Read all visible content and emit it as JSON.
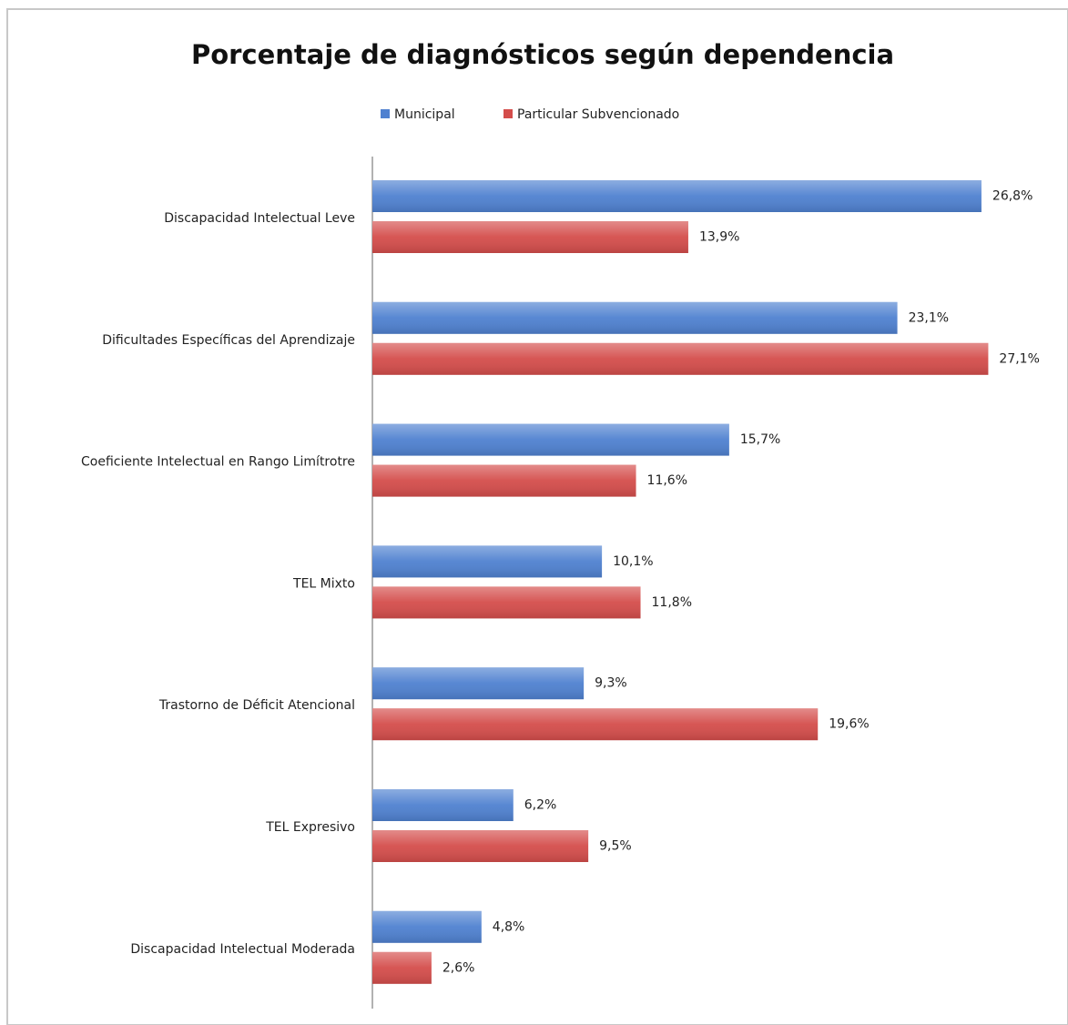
{
  "chart_data": {
    "type": "barh",
    "title": "Porcentaje de diagnósticos según dependencia",
    "categories": [
      "Discapacidad Intelectual Leve",
      "Dificultades Específicas del Aprendizaje",
      "Coeficiente Intelectual en Rango Limítrotre",
      "TEL Mixto",
      "Trastorno de Déficit Atencional",
      "TEL Expresivo",
      "Discapacidad Intelectual Moderada"
    ],
    "series": [
      {
        "name": "Municipal",
        "color": "#4f81d0",
        "values": [
          26.8,
          23.1,
          15.7,
          10.1,
          9.3,
          6.2,
          4.8
        ],
        "value_labels": [
          "26,8%",
          "23,1%",
          "15,7%",
          "10,1%",
          "9,3%",
          "6,2%",
          "4,8%"
        ]
      },
      {
        "name": "Particular Subvencionado",
        "color": "#d44d4b",
        "values": [
          13.9,
          27.1,
          11.6,
          11.8,
          19.6,
          9.5,
          2.6
        ],
        "value_labels": [
          "13,9%",
          "27,1%",
          "11,6%",
          "11,8%",
          "19,6%",
          "9,5%",
          "2,6%"
        ]
      }
    ]
  }
}
